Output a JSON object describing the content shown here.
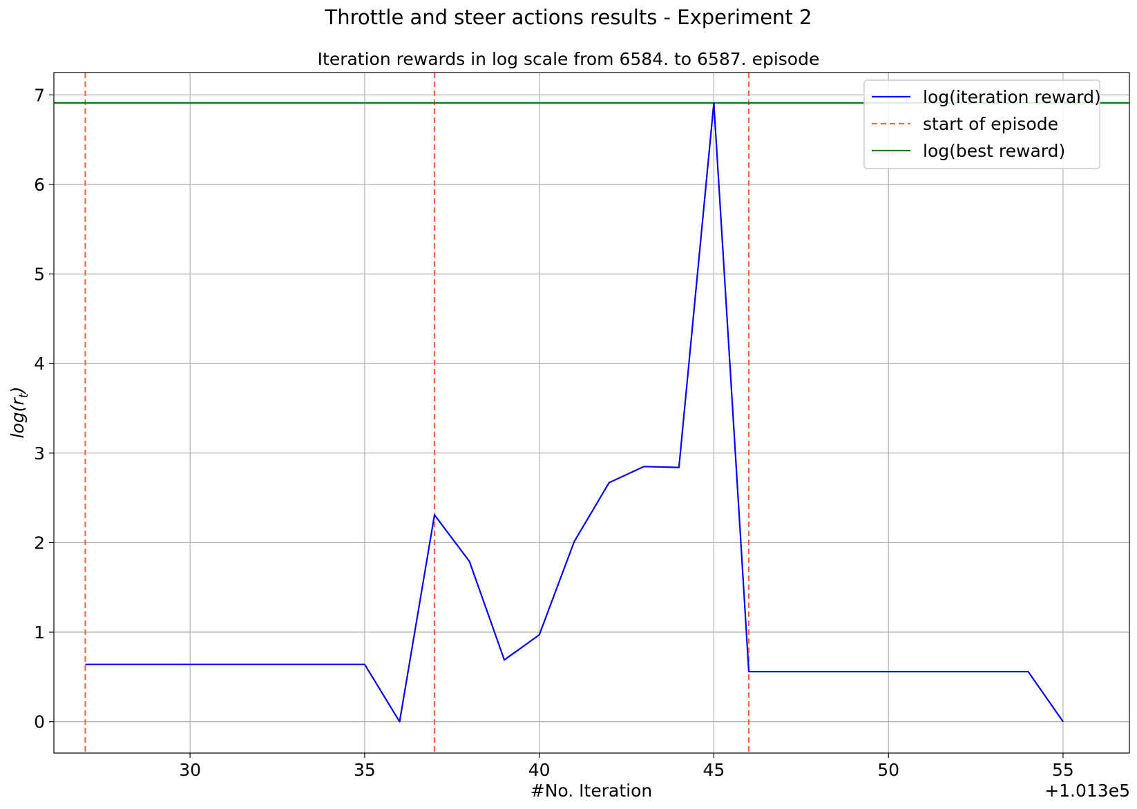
{
  "chart_data": {
    "type": "line",
    "title": "Throttle and steer actions results - Experiment 2",
    "subtitle": "Iteration rewards in log scale from 6584. to 6587. episode",
    "xlabel": "#No. Iteration",
    "ylabel": "log(r_t)",
    "ylabel_main": "log(r",
    "ylabel_sub": "t",
    "ylabel_close": ")",
    "x_offset_label": "+1.013e5",
    "xlim": [
      26.1,
      56.9
    ],
    "ylim": [
      -0.35,
      7.25
    ],
    "xticks": [
      30,
      35,
      40,
      45,
      50,
      55
    ],
    "xtick_labels": [
      "30",
      "35",
      "40",
      "45",
      "50",
      "55"
    ],
    "yticks": [
      0,
      1,
      2,
      3,
      4,
      5,
      6,
      7
    ],
    "ytick_labels": [
      "0",
      "1",
      "2",
      "3",
      "4",
      "5",
      "6",
      "7"
    ],
    "grid": true,
    "legend_position": "top-right",
    "series": [
      {
        "name": "log(iteration reward)",
        "color": "#0000ff",
        "style": "solid",
        "x": [
          27,
          28,
          29,
          30,
          31,
          32,
          33,
          34,
          35,
          36,
          37,
          38,
          39,
          40,
          41,
          42,
          43,
          44,
          45,
          46,
          47,
          48,
          49,
          50,
          51,
          52,
          53,
          54,
          55
        ],
        "y": [
          0.64,
          0.64,
          0.64,
          0.64,
          0.64,
          0.64,
          0.64,
          0.64,
          0.64,
          0.0,
          2.31,
          1.79,
          0.69,
          0.97,
          2.01,
          2.67,
          2.85,
          2.84,
          6.91,
          0.56,
          0.56,
          0.56,
          0.56,
          0.56,
          0.56,
          0.56,
          0.56,
          0.56,
          0.0
        ]
      }
    ],
    "vlines": {
      "name": "start of episode",
      "color": "#ff6347",
      "style": "dashed",
      "x": [
        27,
        37,
        46
      ]
    },
    "hline": {
      "name": "log(best reward)",
      "color": "#008000",
      "style": "solid",
      "y": 6.91
    }
  }
}
